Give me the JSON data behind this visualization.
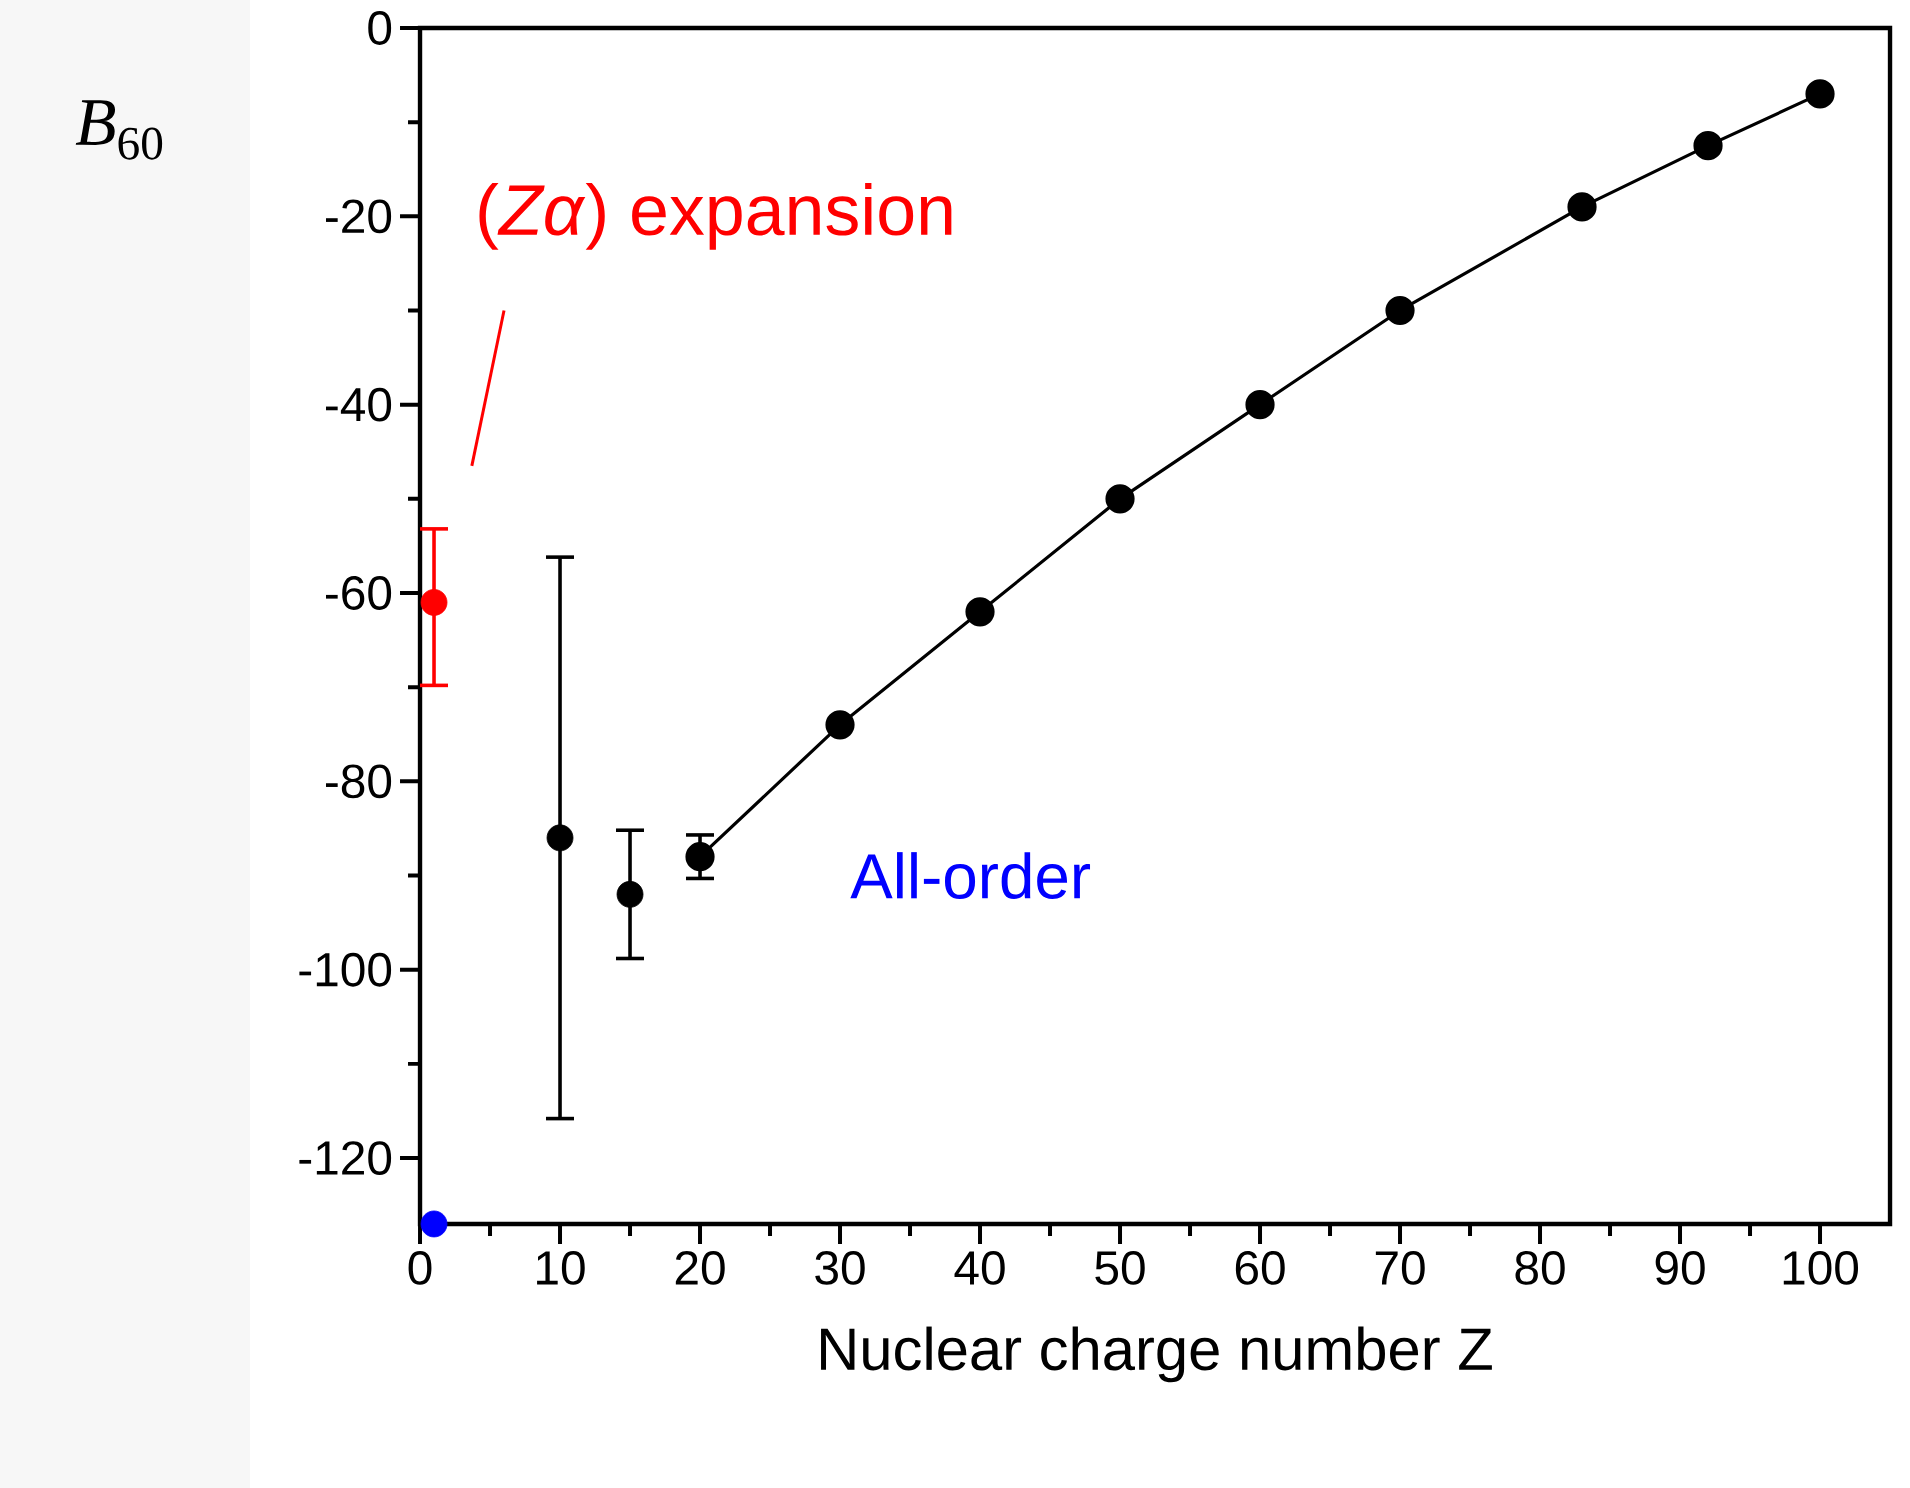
{
  "chart_data": {
    "type": "scatter",
    "xlabel": "Nuclear charge number Z",
    "ylabel": "*B*$_{60}$",
    "xlim": [
      0,
      105
    ],
    "ylim": [
      -127,
      0
    ],
    "xticks": [
      0,
      10,
      20,
      30,
      40,
      50,
      60,
      70,
      80,
      90,
      100
    ],
    "yticks": [
      -120,
      -100,
      -80,
      -60,
      -40,
      -20,
      0
    ],
    "marker": "circle",
    "grid": false,
    "series": [
      {
        "color": "#000000",
        "x": [
          10,
          15
        ],
        "values": [
          -86,
          -92
        ],
        "errors": [
          [
            -116,
            -56
          ],
          [
            -99,
            -85
          ]
        ]
      },
      {
        "type": "line",
        "color": "#000000",
        "line_style": "solid",
        "x": [
          20,
          30,
          40,
          50,
          60,
          70,
          83,
          92,
          100
        ],
        "values": [
          -88,
          -74,
          -62,
          -50,
          -40,
          -30,
          -19,
          -12.5,
          -7
        ],
        "errors": [
          [
            -90.5,
            -85.5
          ],
          null,
          null,
          null,
          null,
          null,
          null,
          null,
          null
        ]
      },
      {
        "name": "(*Zα*) expansion",
        "color": "#ff0000",
        "x": [
          1
        ],
        "values": [
          -61
        ],
        "errors": [
          [
            -70,
            -53
          ]
        ]
      },
      {
        "name": "All-order",
        "color": "#0000ff",
        "x": [
          1
        ],
        "values": [
          -127
        ]
      }
    ]
  }
}
